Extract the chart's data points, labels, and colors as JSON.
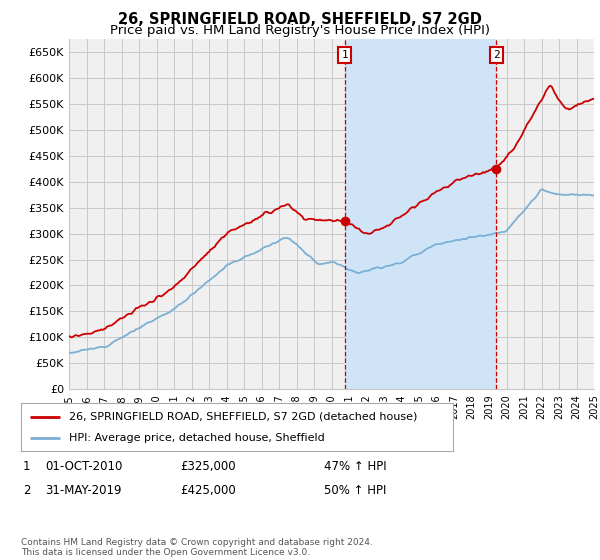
{
  "title": "26, SPRINGFIELD ROAD, SHEFFIELD, S7 2GD",
  "subtitle": "Price paid vs. HM Land Registry's House Price Index (HPI)",
  "ylim": [
    0,
    675000
  ],
  "yticks": [
    0,
    50000,
    100000,
    150000,
    200000,
    250000,
    300000,
    350000,
    400000,
    450000,
    500000,
    550000,
    600000,
    650000
  ],
  "ytick_labels": [
    "£0",
    "£50K",
    "£100K",
    "£150K",
    "£200K",
    "£250K",
    "£300K",
    "£350K",
    "£400K",
    "£450K",
    "£500K",
    "£550K",
    "£600K",
    "£650K"
  ],
  "grid_color": "#c8c8c8",
  "plot_bg_color": "#f0f0f0",
  "shade_color": "#d0e4f7",
  "line1_color": "#cc0000",
  "line2_color": "#7bafd4",
  "vline_color": "#cc0000",
  "sale1_year": 2010.75,
  "sale1_price": 325000,
  "sale2_year": 2019.42,
  "sale2_price": 425000,
  "legend_label1": "26, SPRINGFIELD ROAD, SHEFFIELD, S7 2GD (detached house)",
  "legend_label2": "HPI: Average price, detached house, Sheffield",
  "annotation1_date": "01-OCT-2010",
  "annotation1_price": "£325,000",
  "annotation1_hpi": "47% ↑ HPI",
  "annotation2_date": "31-MAY-2019",
  "annotation2_price": "£425,000",
  "annotation2_hpi": "50% ↑ HPI",
  "footer": "Contains HM Land Registry data © Crown copyright and database right 2024.\nThis data is licensed under the Open Government Licence v3.0."
}
